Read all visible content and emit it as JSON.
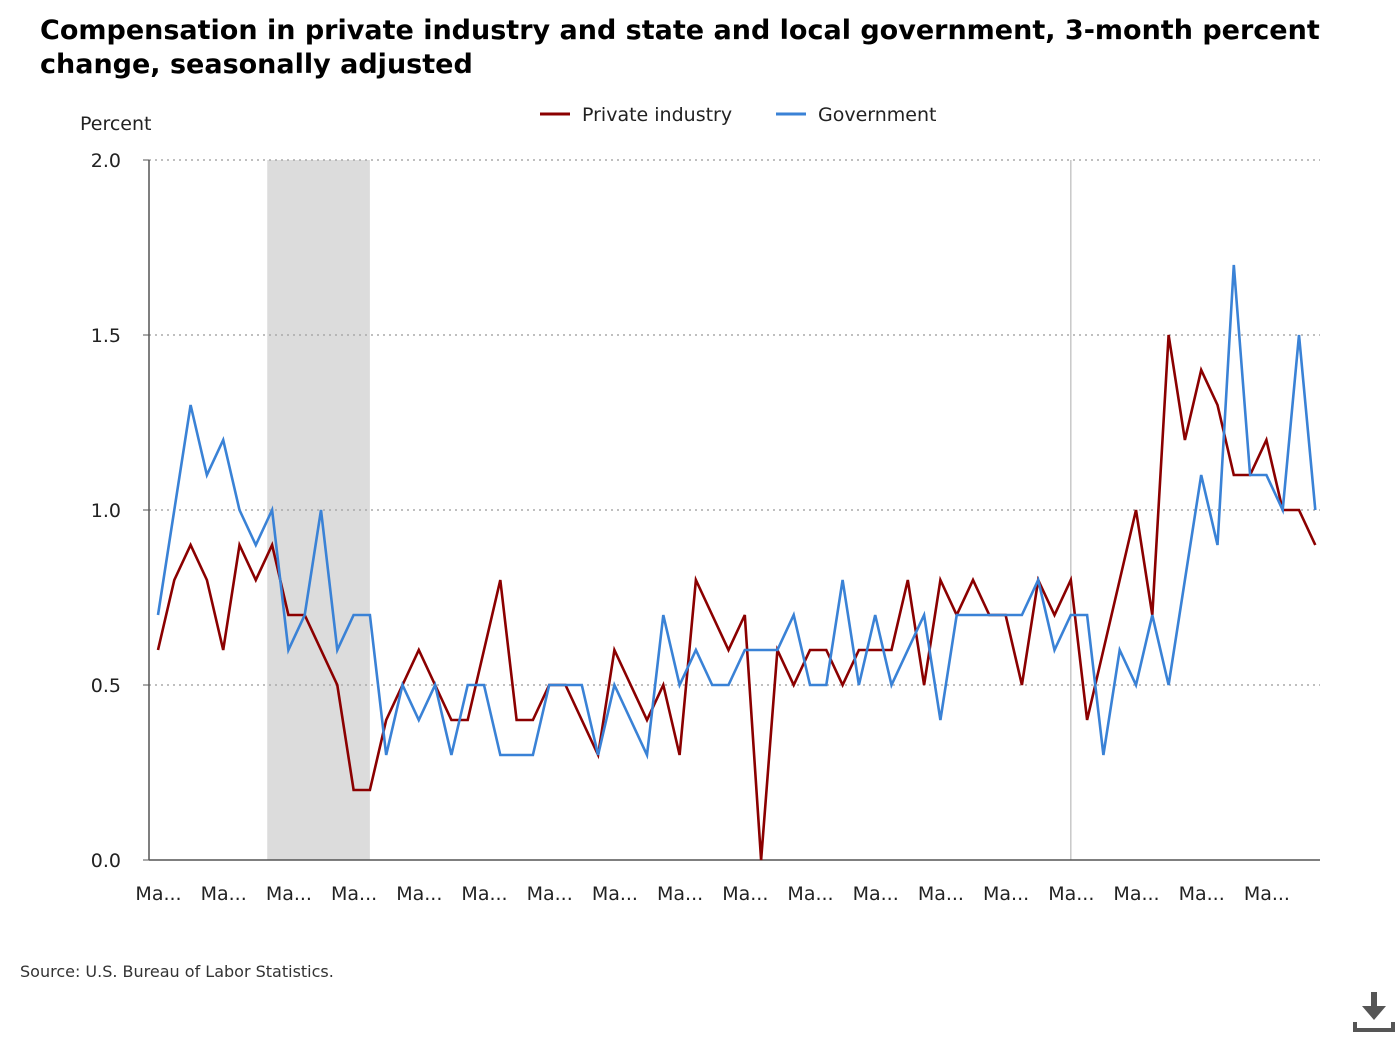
{
  "title": "Compensation in private industry and state and local government, 3-month percent change, seasonally adjusted",
  "source": "Source: U.S. Bureau of Labor Statistics.",
  "download_icon": "download-icon",
  "colors": {
    "private_industry": "#8b0000",
    "government": "#3a82d6",
    "recession_shade": "#dcdcdc",
    "grid": "#aaaaaa",
    "axis": "#555555"
  },
  "chart_data": {
    "type": "line",
    "title": "Compensation in private industry and state and local government, 3-month percent change, seasonally adjusted",
    "ylabel": "Percent",
    "xlabel": "",
    "ylim": [
      0,
      2.0
    ],
    "y_ticks": [
      "0.0",
      "0.5",
      "1.0",
      "1.5",
      "2.0"
    ],
    "x_tick_labels": [
      "Ma...",
      "Ma...",
      "Ma...",
      "Ma...",
      "Ma...",
      "Ma...",
      "Ma...",
      "Ma...",
      "Ma...",
      "Ma...",
      "Ma...",
      "Ma...",
      "Ma...",
      "Ma...",
      "Ma...",
      "Ma...",
      "Ma...",
      "Ma..."
    ],
    "x_tick_every": 4,
    "grid": "horizontal dotted",
    "legend": "top-center",
    "shaded_period": [
      7,
      13
    ],
    "vertical_marker": 56,
    "series": [
      {
        "name": "Private industry",
        "color": "#8b0000",
        "values": [
          0.6,
          0.8,
          0.9,
          0.8,
          0.6,
          0.9,
          0.8,
          0.9,
          0.7,
          0.7,
          0.6,
          0.5,
          0.2,
          0.2,
          0.4,
          0.5,
          0.6,
          0.5,
          0.4,
          0.4,
          0.6,
          0.8,
          0.4,
          0.4,
          0.5,
          0.5,
          0.4,
          0.3,
          0.6,
          0.5,
          0.4,
          0.5,
          0.3,
          0.8,
          0.7,
          0.6,
          0.7,
          0.0,
          0.6,
          0.5,
          0.6,
          0.6,
          0.5,
          0.6,
          0.6,
          0.6,
          0.8,
          0.5,
          0.8,
          0.7,
          0.8,
          0.7,
          0.7,
          0.5,
          0.8,
          0.7,
          0.8,
          0.4,
          0.6,
          0.8,
          1.0,
          0.7,
          1.5,
          1.2,
          1.4,
          1.3,
          1.1,
          1.1,
          1.2,
          1.0,
          1.0,
          0.9
        ]
      },
      {
        "name": "Government",
        "color": "#3a82d6",
        "values": [
          0.7,
          1.0,
          1.3,
          1.1,
          1.2,
          1.0,
          0.9,
          1.0,
          0.6,
          0.7,
          1.0,
          0.6,
          0.7,
          0.7,
          0.3,
          0.5,
          0.4,
          0.5,
          0.3,
          0.5,
          0.5,
          0.3,
          0.3,
          0.3,
          0.5,
          0.5,
          0.5,
          0.3,
          0.5,
          0.4,
          0.3,
          0.7,
          0.5,
          0.6,
          0.5,
          0.5,
          0.6,
          0.6,
          0.6,
          0.7,
          0.5,
          0.5,
          0.8,
          0.5,
          0.7,
          0.5,
          0.6,
          0.7,
          0.4,
          0.7,
          0.7,
          0.7,
          0.7,
          0.7,
          0.8,
          0.6,
          0.7,
          0.7,
          0.3,
          0.6,
          0.5,
          0.7,
          0.5,
          0.8,
          1.1,
          0.9,
          1.7,
          1.1,
          1.1,
          1.0,
          1.5,
          1.0
        ]
      }
    ]
  }
}
